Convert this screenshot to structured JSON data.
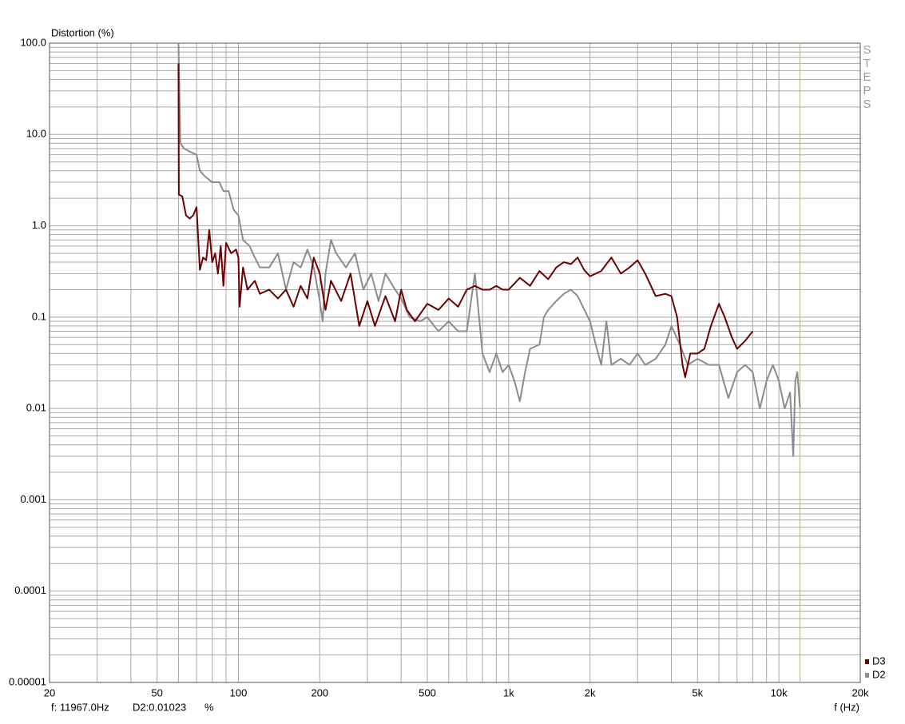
{
  "chart_data": {
    "type": "line",
    "ylabel": "Distortion (%)",
    "xlabel": "f (Hz)",
    "side_label": "STEPS",
    "log_x": true,
    "log_y": true,
    "grid": true,
    "xlim": [
      20,
      20000
    ],
    "ylim": [
      1e-05,
      100
    ],
    "xticks": [
      20,
      50,
      100,
      200,
      500,
      {
        "value": 1000,
        "label": "1k"
      },
      {
        "value": 2000,
        "label": "2k"
      },
      {
        "value": 5000,
        "label": "5k"
      },
      {
        "value": 10000,
        "label": "10k"
      },
      {
        "value": 20000,
        "label": "20k"
      }
    ],
    "yticks": [
      {
        "value": 100,
        "label": "100.0"
      },
      {
        "value": 10,
        "label": "10.0"
      },
      {
        "value": 1,
        "label": "1.0"
      },
      0.1,
      0.01,
      0.001,
      0.0001,
      {
        "value": 1e-05,
        "label": "0.00001"
      }
    ],
    "x_minor_ticks": [
      30,
      40,
      60,
      70,
      80,
      90,
      300,
      400,
      600,
      700,
      800,
      900,
      3000,
      4000,
      6000,
      7000,
      8000,
      9000
    ],
    "y_minor_ticks": [
      2e-05,
      3e-05,
      4e-05,
      5e-05,
      6e-05,
      7e-05,
      8e-05,
      9e-05,
      0.0002,
      0.0003,
      0.0004,
      0.0005,
      0.0006,
      0.0007,
      0.0008,
      0.0009,
      0.002,
      0.003,
      0.004,
      0.005,
      0.006,
      0.007,
      0.008,
      0.009,
      0.02,
      0.03,
      0.04,
      0.05,
      0.06,
      0.07,
      0.08,
      0.09,
      0.2,
      0.3,
      0.4,
      0.5,
      0.6,
      0.7,
      0.8,
      0.9,
      2,
      3,
      4,
      5,
      6,
      7,
      8,
      9,
      20,
      30,
      40,
      50,
      60,
      70,
      80,
      90
    ],
    "cursor": 11967,
    "cursor_color": "#e6c200",
    "readout": [
      "f: 11967.0Hz",
      "D2:0.01023",
      "%"
    ],
    "legend": "lower right",
    "series": [
      {
        "name": "D3",
        "color": "#6e0000",
        "x": [
          60,
          60.2,
          62,
          64,
          66,
          68,
          70,
          72,
          74,
          76,
          78,
          80,
          82,
          84,
          86,
          88,
          90,
          94,
          98,
          100,
          101,
          104,
          108,
          115,
          120,
          130,
          140,
          150,
          160,
          170,
          180,
          190,
          200,
          210,
          220,
          240,
          260,
          280,
          300,
          320,
          350,
          380,
          400,
          420,
          450,
          500,
          550,
          600,
          650,
          700,
          750,
          800,
          850,
          900,
          950,
          1000,
          1100,
          1200,
          1300,
          1400,
          1500,
          1600,
          1700,
          1800,
          1900,
          2000,
          2200,
          2400,
          2600,
          2800,
          3000,
          3200,
          3500,
          3800,
          4000,
          4200,
          4400,
          4500,
          4700,
          5000,
          5300,
          5600,
          6000,
          6300,
          6700,
          7000,
          7500,
          8000
        ],
        "values": [
          60,
          2.2,
          2.1,
          1.3,
          1.2,
          1.3,
          1.6,
          0.33,
          0.45,
          0.42,
          0.9,
          0.4,
          0.5,
          0.3,
          0.6,
          0.22,
          0.65,
          0.5,
          0.55,
          0.45,
          0.13,
          0.35,
          0.2,
          0.25,
          0.18,
          0.2,
          0.16,
          0.2,
          0.13,
          0.22,
          0.16,
          0.45,
          0.3,
          0.12,
          0.25,
          0.15,
          0.3,
          0.08,
          0.15,
          0.08,
          0.17,
          0.09,
          0.2,
          0.12,
          0.09,
          0.14,
          0.12,
          0.16,
          0.13,
          0.2,
          0.22,
          0.2,
          0.2,
          0.22,
          0.2,
          0.2,
          0.27,
          0.22,
          0.32,
          0.26,
          0.35,
          0.4,
          0.38,
          0.45,
          0.33,
          0.28,
          0.32,
          0.45,
          0.3,
          0.35,
          0.42,
          0.3,
          0.17,
          0.18,
          0.17,
          0.1,
          0.03,
          0.022,
          0.04,
          0.04,
          0.045,
          0.08,
          0.14,
          0.1,
          0.06,
          0.045,
          0.055,
          0.07
        ]
      },
      {
        "name": "D2",
        "color": "#8c8c8c",
        "x": [
          60,
          61,
          63,
          66,
          70,
          72,
          75,
          80,
          85,
          88,
          92,
          96,
          100,
          104,
          110,
          115,
          120,
          130,
          140,
          150,
          160,
          170,
          180,
          190,
          200,
          205,
          210,
          220,
          230,
          250,
          270,
          290,
          310,
          330,
          350,
          380,
          400,
          430,
          470,
          500,
          550,
          600,
          650,
          700,
          750,
          800,
          850,
          900,
          950,
          1000,
          1050,
          1100,
          1150,
          1200,
          1300,
          1350,
          1400,
          1500,
          1600,
          1700,
          1800,
          2000,
          2100,
          2200,
          2300,
          2400,
          2600,
          2800,
          3000,
          3200,
          3500,
          3800,
          4000,
          4300,
          4600,
          5000,
          5500,
          6000,
          6500,
          7000,
          7500,
          8000,
          8500,
          9000,
          9500,
          10000,
          10500,
          11000,
          11300,
          11500,
          11700,
          11967
        ],
        "values": [
          100,
          8,
          7,
          6.5,
          6,
          4,
          3.5,
          3,
          3,
          2.4,
          2.4,
          1.5,
          1.3,
          0.7,
          0.6,
          0.45,
          0.35,
          0.35,
          0.5,
          0.2,
          0.4,
          0.35,
          0.55,
          0.35,
          0.15,
          0.09,
          0.3,
          0.7,
          0.5,
          0.35,
          0.5,
          0.2,
          0.3,
          0.15,
          0.3,
          0.2,
          0.16,
          0.1,
          0.09,
          0.1,
          0.07,
          0.09,
          0.07,
          0.07,
          0.3,
          0.04,
          0.025,
          0.04,
          0.025,
          0.03,
          0.02,
          0.012,
          0.025,
          0.045,
          0.05,
          0.1,
          0.12,
          0.15,
          0.18,
          0.2,
          0.17,
          0.09,
          0.05,
          0.03,
          0.09,
          0.03,
          0.035,
          0.03,
          0.04,
          0.03,
          0.035,
          0.05,
          0.08,
          0.05,
          0.03,
          0.035,
          0.03,
          0.03,
          0.013,
          0.025,
          0.03,
          0.025,
          0.01,
          0.02,
          0.03,
          0.02,
          0.01,
          0.015,
          0.003,
          0.02,
          0.025,
          0.01023
        ]
      }
    ]
  }
}
